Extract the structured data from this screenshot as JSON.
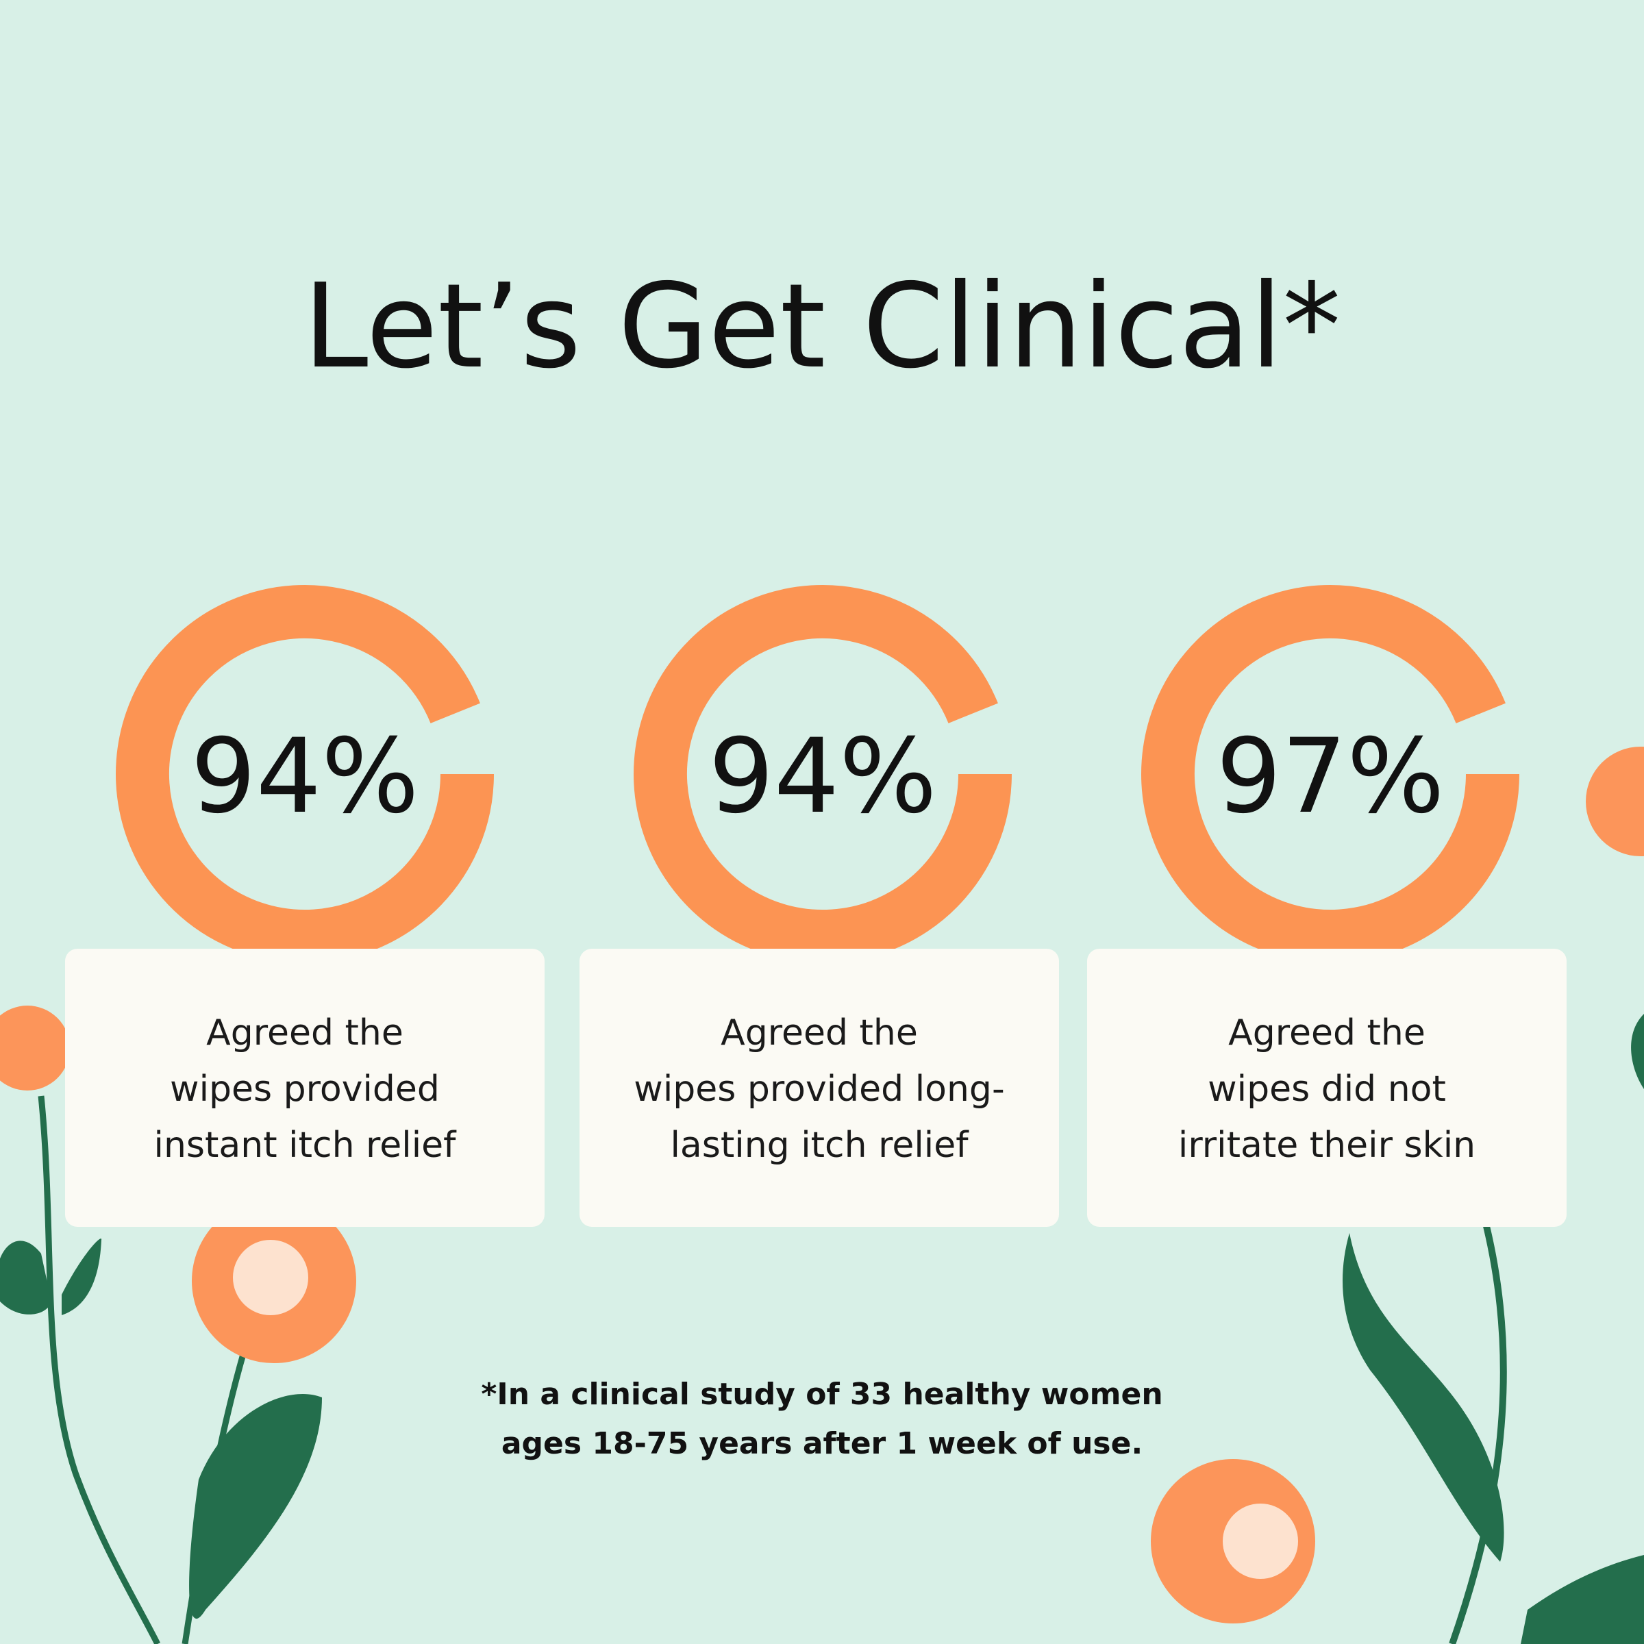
{
  "header": {
    "title": "Let’s Get Clinical*"
  },
  "stats": [
    {
      "value": "94%",
      "caption": [
        "Agreed the",
        "wipes provided",
        "instant itch relief"
      ]
    },
    {
      "value": "94%",
      "caption": [
        "Agreed the",
        "wipes provided long-",
        "lasting itch relief"
      ]
    },
    {
      "value": "97%",
      "caption": [
        "Agreed the",
        "wipes did not",
        "irritate their skin"
      ]
    }
  ],
  "footnote": [
    "*In a clinical study of 33 healthy women",
    "ages 18-75 years after 1 week of use."
  ]
}
